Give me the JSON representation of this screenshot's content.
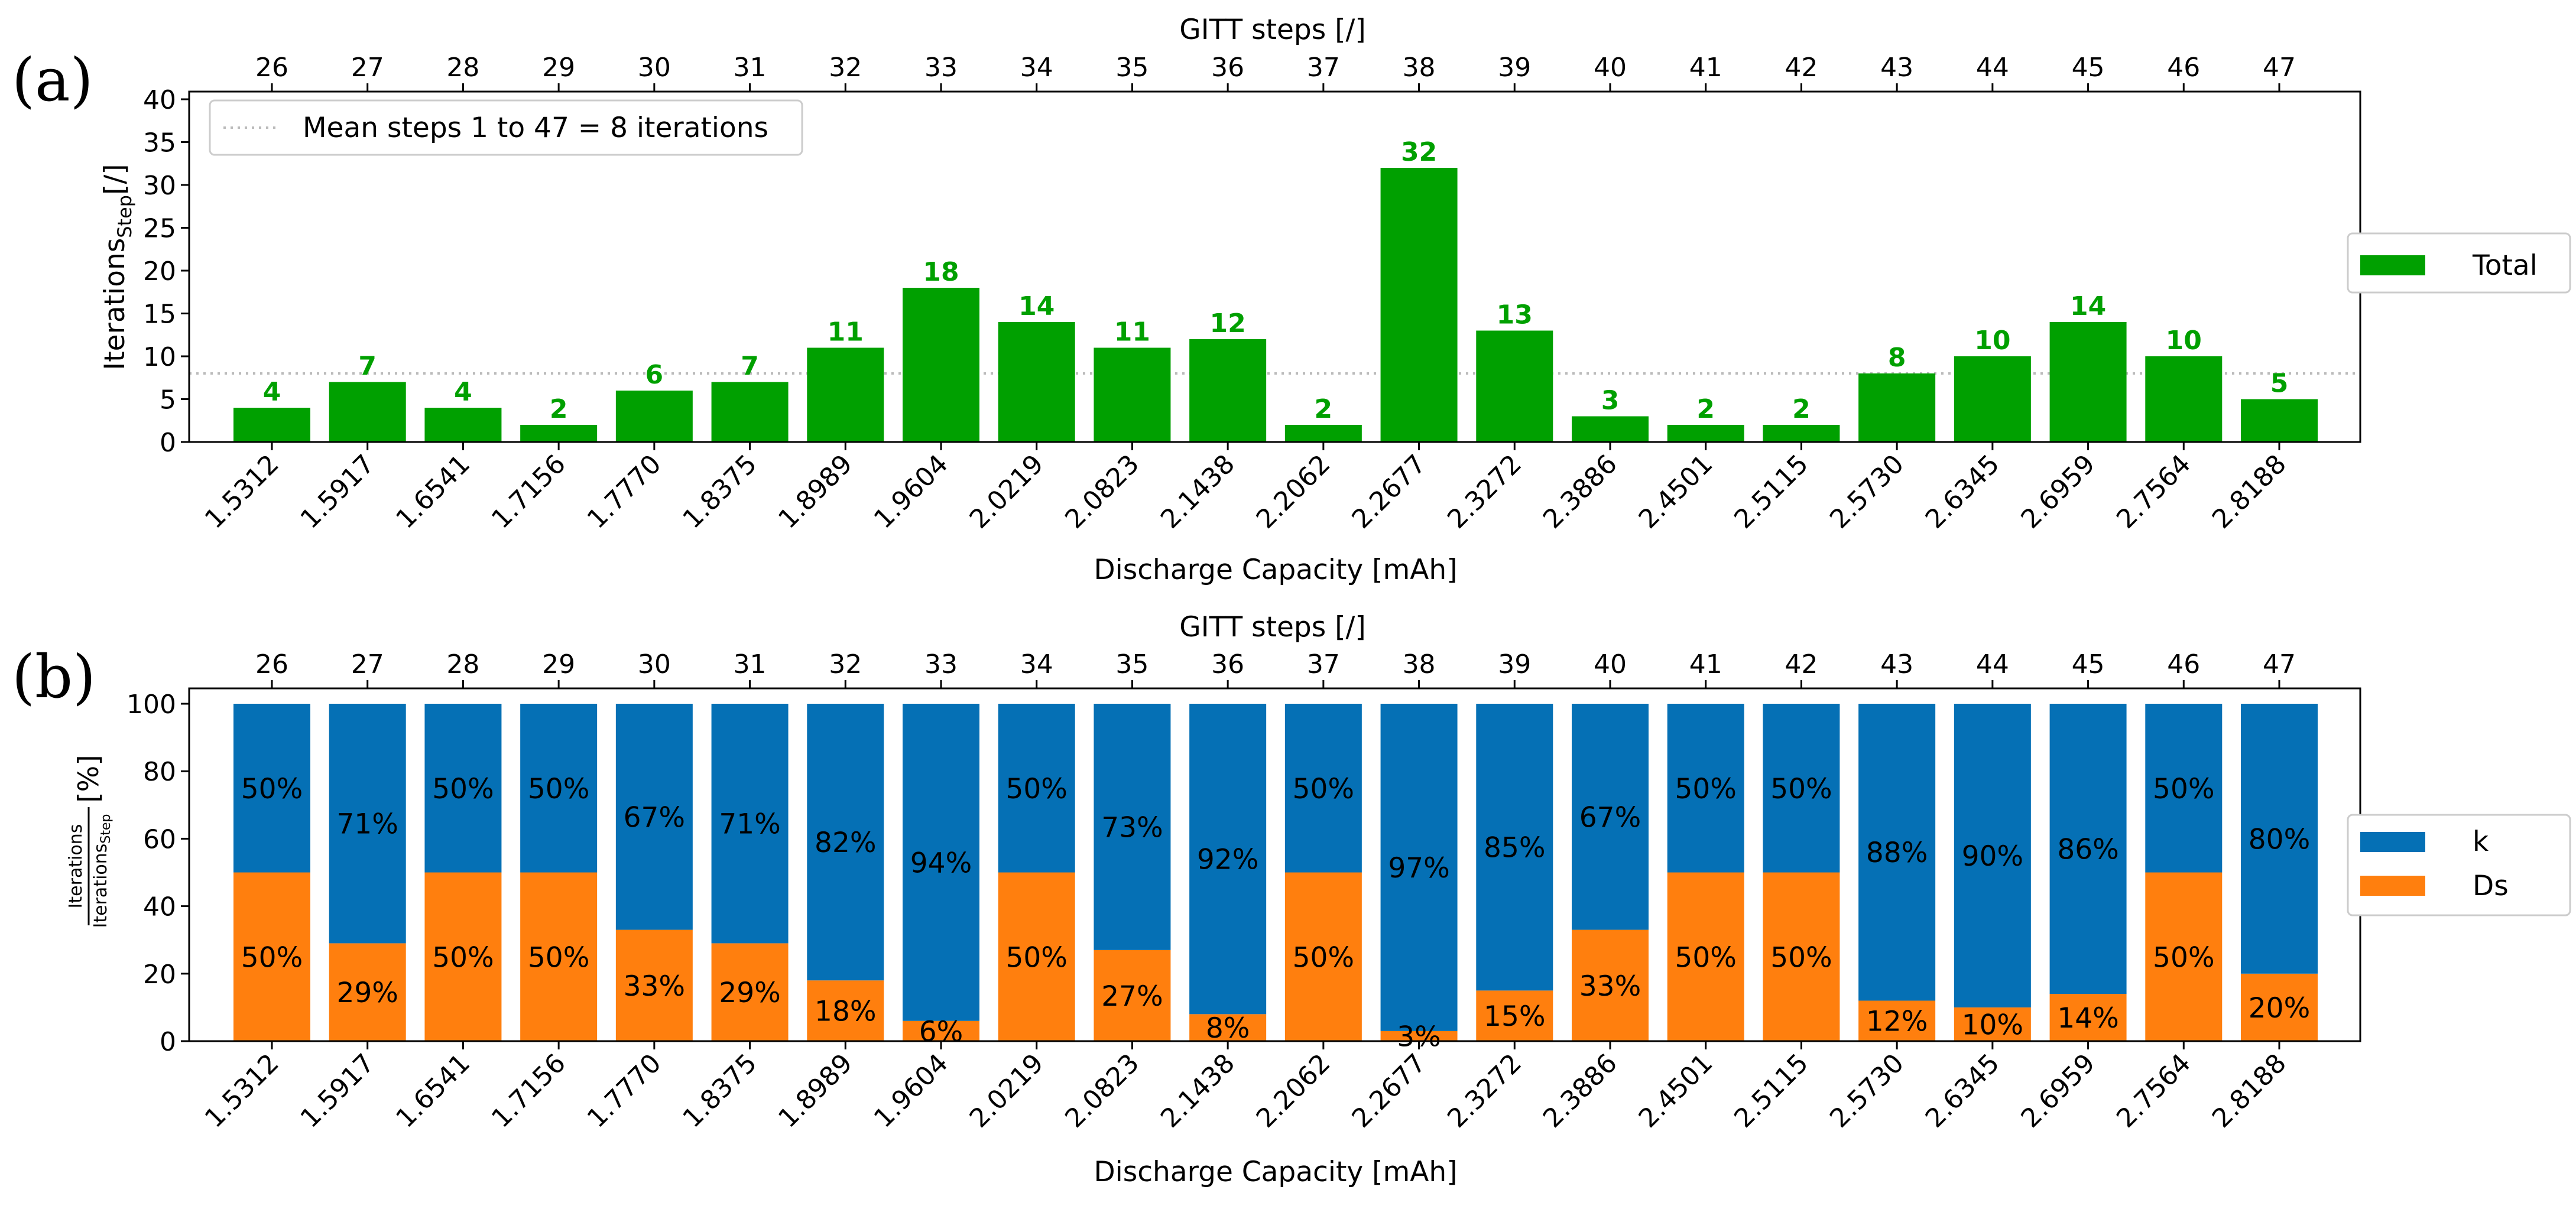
{
  "chart_data": [
    {
      "type": "bar",
      "panel_label": "(a)",
      "top_axis_label": "GITT steps [/]",
      "xlabel": "Discharge Capacity [mAh]",
      "ylabel_main": "Iterations",
      "ylabel_sub": "Step",
      "ylabel_unit": "[/]",
      "ylim": [
        0,
        40
      ],
      "yticks": [
        0,
        5,
        10,
        15,
        20,
        25,
        30,
        35,
        40
      ],
      "categories": [
        "1.5312",
        "1.5917",
        "1.6541",
        "1.7156",
        "1.7770",
        "1.8375",
        "1.8989",
        "1.9604",
        "2.0219",
        "2.0823",
        "2.1438",
        "2.2062",
        "2.2677",
        "2.3272",
        "2.3886",
        "2.4501",
        "2.5115",
        "2.5730",
        "2.6345",
        "2.6959",
        "2.7564",
        "2.8188"
      ],
      "steps": [
        "26",
        "27",
        "28",
        "29",
        "30",
        "31",
        "32",
        "33",
        "34",
        "35",
        "36",
        "37",
        "38",
        "39",
        "40",
        "41",
        "42",
        "43",
        "44",
        "45",
        "46",
        "47"
      ],
      "series": [
        {
          "name": "Total",
          "color": "#00a000",
          "values": [
            4,
            7,
            4,
            2,
            6,
            7,
            11,
            18,
            14,
            11,
            12,
            2,
            32,
            13,
            3,
            2,
            2,
            8,
            10,
            14,
            10,
            5
          ]
        }
      ],
      "mean_line": {
        "value": 8,
        "label": "Mean steps 1 to 47 = 8 iterations",
        "color": "#bbbbbb"
      },
      "data_label_color": "#00a000",
      "legend_position": "right"
    },
    {
      "type": "bar",
      "stacked": true,
      "panel_label": "(b)",
      "top_axis_label": "GITT steps [/]",
      "xlabel": "Discharge Capacity [mAh]",
      "ylabel_num": "Iterations",
      "ylabel_den": "Iterations",
      "ylabel_den_sub": "Step",
      "ylabel_unit": "[%]",
      "ylim": [
        0,
        100
      ],
      "yticks": [
        0,
        20,
        40,
        60,
        80,
        100
      ],
      "categories": [
        "1.5312",
        "1.5917",
        "1.6541",
        "1.7156",
        "1.7770",
        "1.8375",
        "1.8989",
        "1.9604",
        "2.0219",
        "2.0823",
        "2.1438",
        "2.2062",
        "2.2677",
        "2.3272",
        "2.3886",
        "2.4501",
        "2.5115",
        "2.5730",
        "2.6345",
        "2.6959",
        "2.7564",
        "2.8188"
      ],
      "steps": [
        "26",
        "27",
        "28",
        "29",
        "30",
        "31",
        "32",
        "33",
        "34",
        "35",
        "36",
        "37",
        "38",
        "39",
        "40",
        "41",
        "42",
        "43",
        "44",
        "45",
        "46",
        "47"
      ],
      "series": [
        {
          "name": "k",
          "color": "#0570b5",
          "values": [
            50,
            71,
            50,
            50,
            67,
            71,
            82,
            94,
            50,
            73,
            92,
            50,
            97,
            85,
            67,
            50,
            50,
            88,
            90,
            86,
            50,
            80
          ],
          "labels": [
            "50%",
            "71%",
            "50%",
            "50%",
            "67%",
            "71%",
            "82%",
            "94%",
            "50%",
            "73%",
            "92%",
            "50%",
            "97%",
            "85%",
            "67%",
            "50%",
            "50%",
            "88%",
            "90%",
            "86%",
            "50%",
            "80%"
          ]
        },
        {
          "name": "Ds",
          "color": "#ff7f0e",
          "values": [
            50,
            29,
            50,
            50,
            33,
            29,
            18,
            6,
            50,
            27,
            8,
            50,
            3,
            15,
            33,
            50,
            50,
            12,
            10,
            14,
            50,
            20
          ],
          "labels": [
            "50%",
            "29%",
            "50%",
            "50%",
            "33%",
            "29%",
            "18%",
            "6%",
            "50%",
            "27%",
            "8%",
            "50%",
            "3%",
            "15%",
            "33%",
            "50%",
            "50%",
            "12%",
            "10%",
            "14%",
            "50%",
            "20%"
          ]
        }
      ],
      "legend_position": "right"
    }
  ]
}
